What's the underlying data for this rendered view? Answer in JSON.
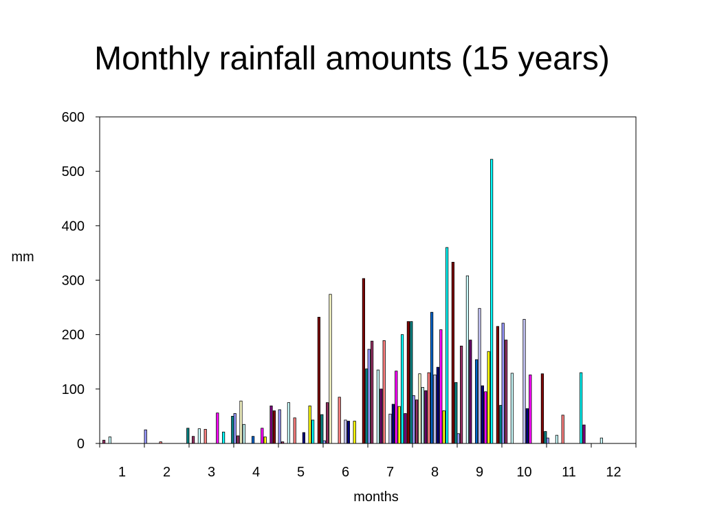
{
  "title": "Monthly rainfall amounts (15 years)",
  "chart_data": {
    "type": "bar",
    "title": "Monthly rainfall amounts (15 years)",
    "xlabel": "months",
    "ylabel": "mm",
    "ylim": [
      0,
      600
    ],
    "yticks": [
      0,
      100,
      200,
      300,
      400,
      500,
      600
    ],
    "grid": false,
    "legend": "none",
    "categories": [
      "1",
      "2",
      "3",
      "4",
      "5",
      "6",
      "7",
      "8",
      "9",
      "10",
      "11",
      "12"
    ],
    "series": [
      {
        "color": "#9999FF",
        "values": [
          0,
          25,
          0,
          55,
          62,
          5,
          173,
          88,
          18,
          221,
          10,
          0
        ]
      },
      {
        "color": "#993366",
        "values": [
          6,
          0,
          13,
          14,
          3,
          75,
          188,
          80,
          179,
          190,
          0,
          0
        ]
      },
      {
        "color": "#FFFFCC",
        "values": [
          0,
          0,
          0,
          78,
          0,
          274,
          0,
          128,
          0,
          0,
          0,
          0
        ]
      },
      {
        "color": "#CCFFFF",
        "values": [
          12,
          0,
          27,
          35,
          75,
          0,
          135,
          103,
          308,
          129,
          15,
          10
        ]
      },
      {
        "color": "#660066",
        "values": [
          0,
          0,
          0,
          0,
          0,
          0,
          100,
          97,
          190,
          0,
          0,
          0
        ]
      },
      {
        "color": "#FF8080",
        "values": [
          0,
          3,
          26,
          0,
          47,
          85,
          189,
          130,
          0,
          0,
          52,
          0
        ]
      },
      {
        "color": "#0066CC",
        "values": [
          0,
          0,
          0,
          13,
          0,
          0,
          0,
          241,
          154,
          0,
          0,
          0
        ]
      },
      {
        "color": "#CCCCFF",
        "values": [
          0,
          0,
          0,
          0,
          0,
          43,
          54,
          126,
          248,
          228,
          0,
          0
        ]
      },
      {
        "color": "#000080",
        "values": [
          0,
          0,
          0,
          0,
          20,
          41,
          72,
          140,
          106,
          64,
          0,
          0
        ]
      },
      {
        "color": "#FF00FF",
        "values": [
          0,
          0,
          56,
          28,
          0,
          0,
          133,
          209,
          95,
          126,
          0,
          0
        ]
      },
      {
        "color": "#FFFF00",
        "values": [
          0,
          0,
          0,
          12,
          69,
          41,
          68,
          60,
          169,
          0,
          0,
          0
        ]
      },
      {
        "color": "#00FFFF",
        "values": [
          0,
          0,
          21,
          0,
          43,
          0,
          200,
          360,
          522,
          0,
          130,
          0
        ]
      },
      {
        "color": "#800080",
        "values": [
          0,
          0,
          0,
          69,
          0,
          0,
          55,
          0,
          0,
          0,
          34,
          0
        ]
      },
      {
        "color": "#800000",
        "values": [
          0,
          0,
          0,
          60,
          232,
          303,
          224,
          333,
          215,
          128,
          0,
          0
        ]
      },
      {
        "color": "#008080",
        "values": [
          0,
          28,
          50,
          0,
          53,
          137,
          224,
          112,
          70,
          22,
          0,
          0
        ]
      }
    ]
  }
}
